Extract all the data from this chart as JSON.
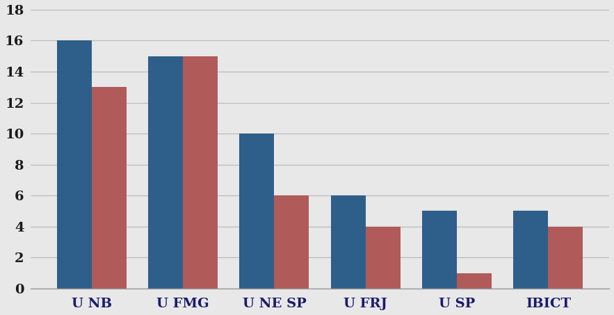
{
  "categories": [
    "U NB",
    "U FMG",
    "U NE SP",
    "U FRJ",
    "U SP",
    "IBICT"
  ],
  "series1": [
    16,
    15,
    10,
    6,
    5,
    5
  ],
  "series2": [
    13,
    15,
    6,
    4,
    1,
    4
  ],
  "color1": "#2E5F8A",
  "color2": "#B05A5A",
  "ylim": [
    0,
    18
  ],
  "yticks": [
    0,
    2,
    4,
    6,
    8,
    10,
    12,
    14,
    16,
    18
  ],
  "bar_width": 0.38,
  "background_color": "#E8E8E8",
  "grid_color": "#BBBBBB",
  "xlabel_fontsize": 14,
  "tick_fontsize": 14,
  "figure_bg": "#D3D3D3"
}
